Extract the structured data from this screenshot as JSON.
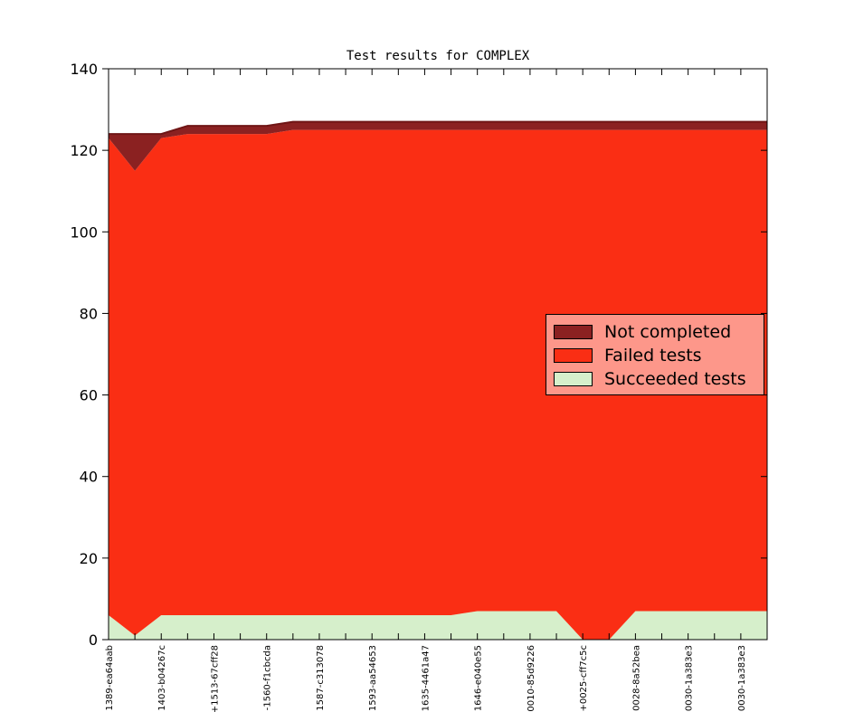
{
  "title": "Test results for COMPLEX",
  "colors": {
    "not_completed": "#8b2121",
    "failed": "#fa2e14",
    "succeeded": "#d6efcb",
    "total_edge": "#6f1515",
    "axis": "#000000"
  },
  "legend": {
    "items": [
      {
        "label": "Not completed",
        "color_key": "not_completed"
      },
      {
        "label": "Failed tests",
        "color_key": "failed"
      },
      {
        "label": "Succeeded tests",
        "color_key": "succeeded"
      }
    ]
  },
  "chart_data": {
    "type": "area",
    "stacked": true,
    "title": "Test results for COMPLEX",
    "grid": false,
    "legend_position": "center right",
    "ylim": [
      0,
      140
    ],
    "y_ticks": [
      0,
      20,
      40,
      60,
      80,
      100,
      120,
      140
    ],
    "n_points": 26,
    "x_labeled_every": 2,
    "x_tick_labels": [
      "1389-ea64aab",
      "1403-b04267c",
      "+1513-67cff28",
      "-1560-f1cbcda",
      "1587-c313078",
      "1593-aa54653",
      "1635-4461a47",
      "1646-e040e55",
      "0010-85d9226",
      "+0025-cff7c5c",
      "0028-8a52bea",
      "0030-1a383e3",
      "0030-1a383e3"
    ],
    "series": [
      {
        "name": "Succeeded tests",
        "color_key": "succeeded",
        "values": [
          6,
          1,
          6,
          6,
          6,
          6,
          6,
          6,
          6,
          6,
          6,
          6,
          6,
          6,
          7,
          7,
          7,
          7,
          0,
          0,
          7,
          7,
          7,
          7,
          7,
          7
        ]
      },
      {
        "name": "Failed tests",
        "color_key": "failed",
        "values": [
          117,
          114,
          117,
          118,
          118,
          118,
          118,
          119,
          119,
          119,
          119,
          119,
          119,
          119,
          118,
          118,
          118,
          118,
          125,
          125,
          118,
          118,
          118,
          118,
          118,
          118
        ]
      },
      {
        "name": "Not completed",
        "color_key": "not_completed",
        "values": [
          1,
          9,
          1,
          2,
          2,
          2,
          2,
          2,
          2,
          2,
          2,
          2,
          2,
          2,
          2,
          2,
          2,
          2,
          2,
          2,
          2,
          2,
          2,
          2,
          2,
          2
        ]
      }
    ]
  }
}
